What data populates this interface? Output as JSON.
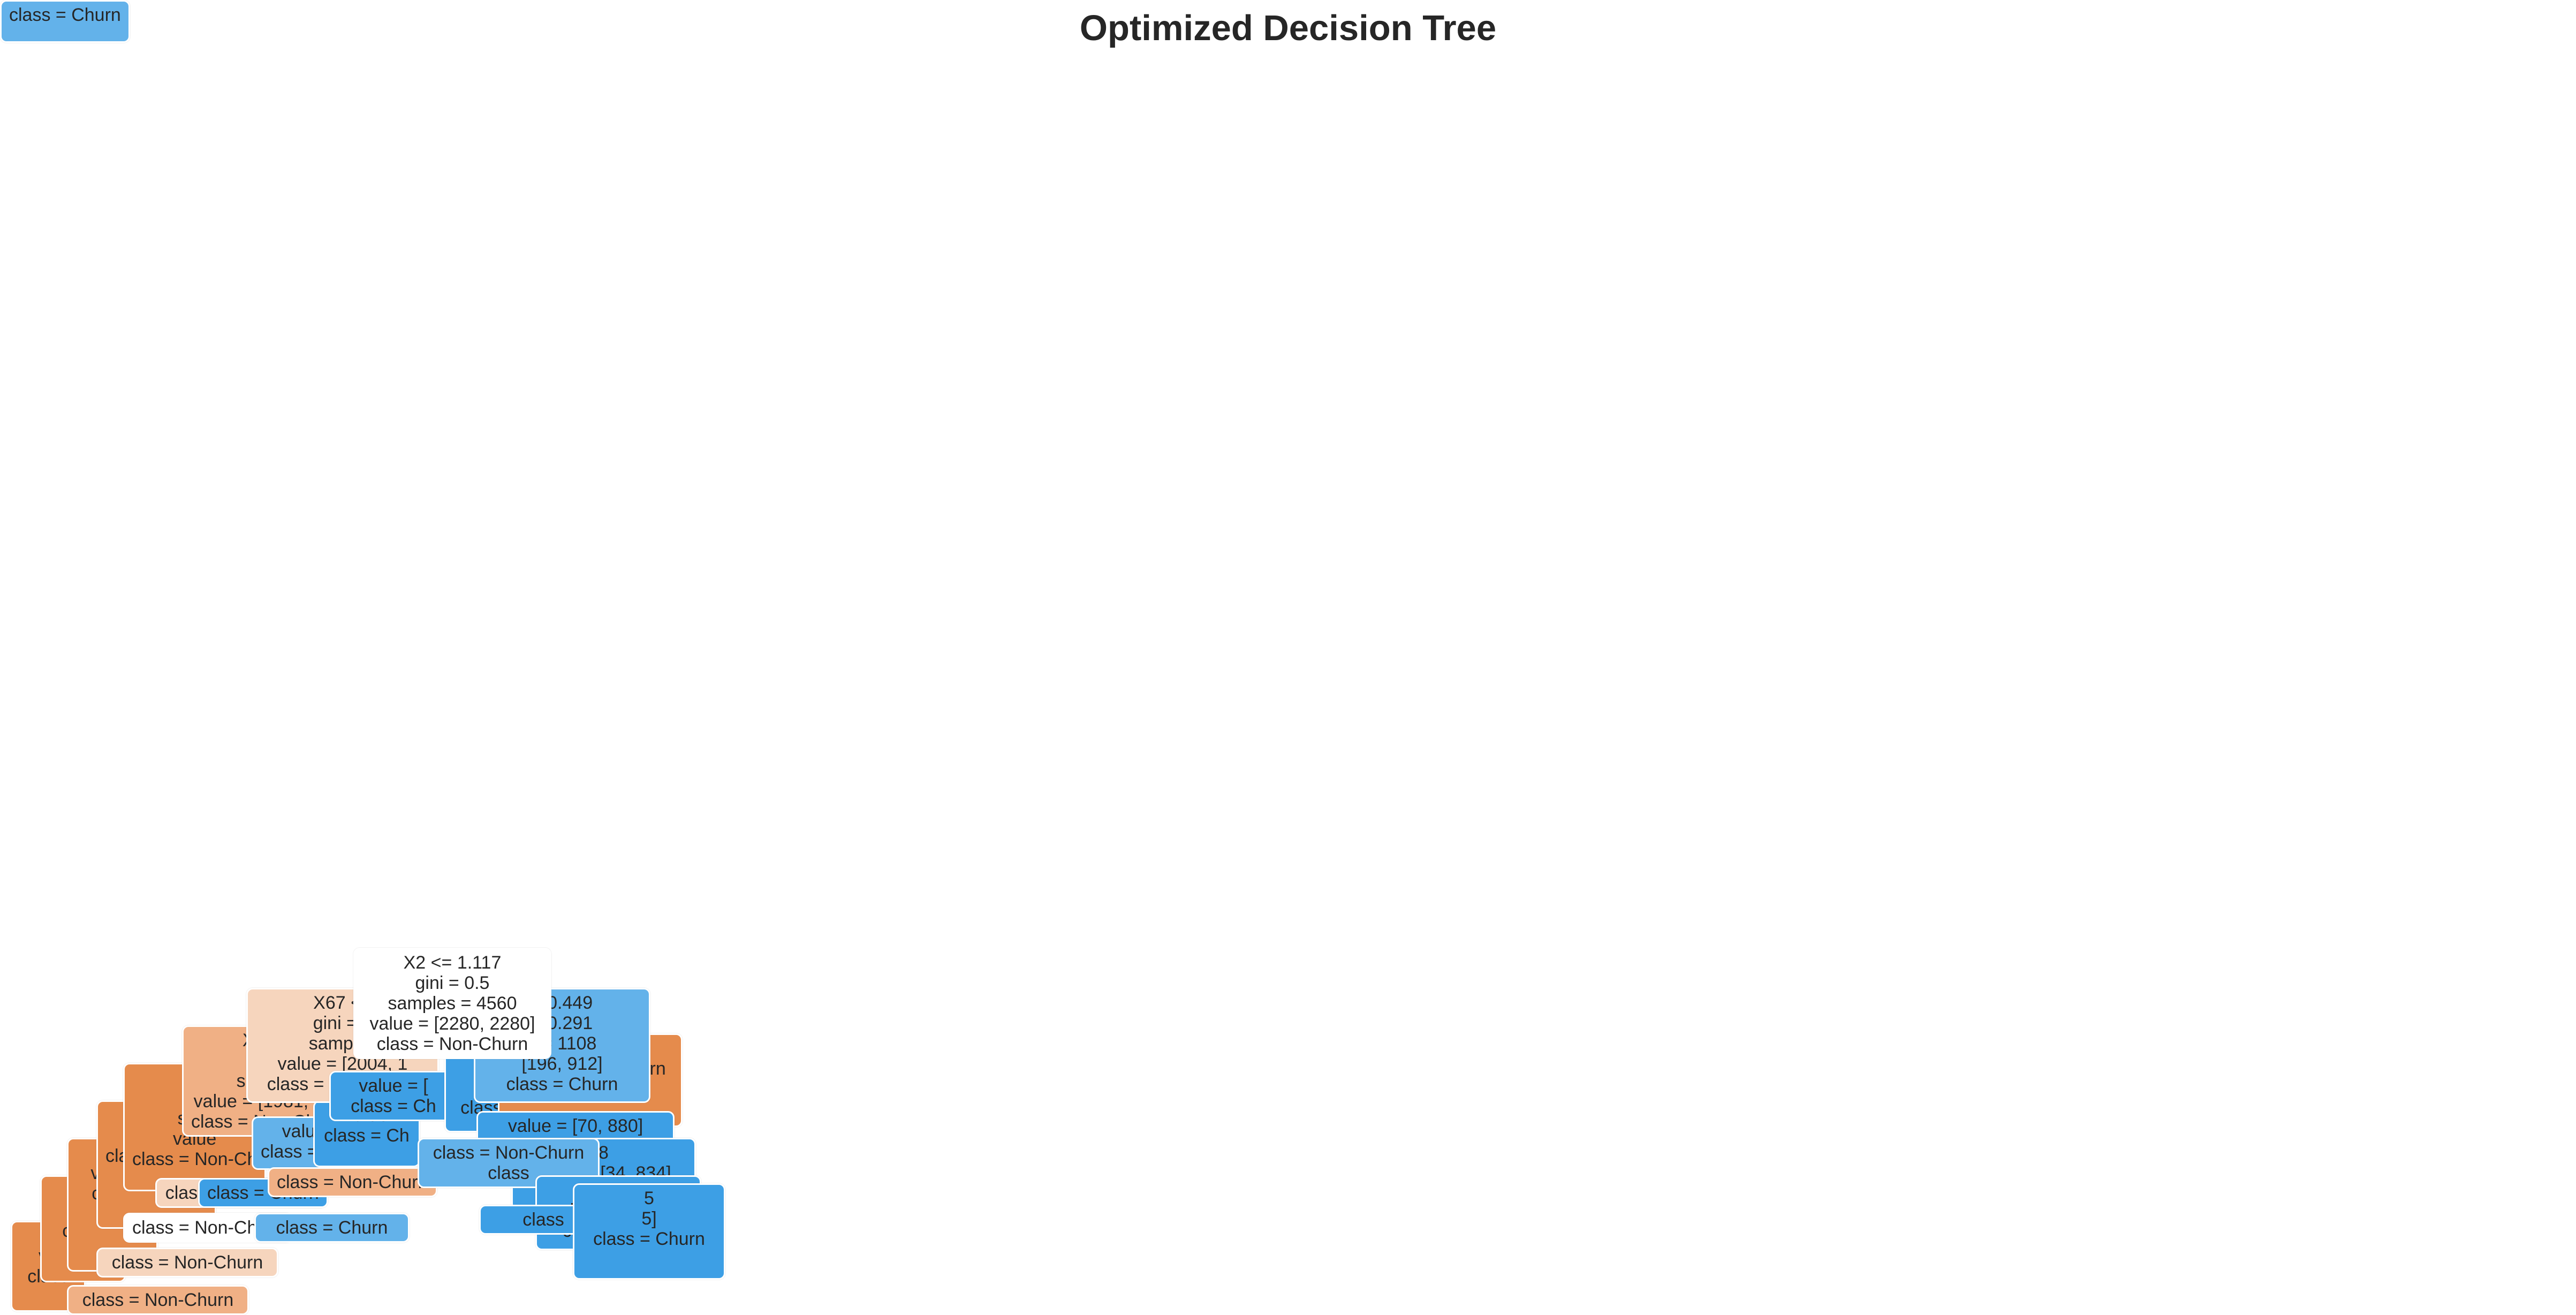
{
  "title": "Optimized Decision Tree",
  "colors": {
    "non_churn_strong": "#e58b4c",
    "non_churn_medium": "#f0b085",
    "non_churn_light": "#f6d5bd",
    "churn_strong": "#3d9fe5",
    "churn_medium": "#63b2ea",
    "churn_light": "#93c9f1",
    "neutral": "#ffffff",
    "text": "#262626"
  },
  "nodes": [
    {
      "id": "leaf-a1",
      "tone": "non_churn_strong",
      "lines": [
        "s",
        "va",
        "class"
      ]
    },
    {
      "id": "leaf-a2",
      "tone": "non_churn_strong",
      "lines": [
        "s",
        "val",
        "class"
      ]
    },
    {
      "id": "leaf-a3",
      "tone": "non_churn_strong",
      "lines": [
        "s",
        "value",
        "class"
      ]
    },
    {
      "id": "leaf-a4",
      "tone": "non_churn_strong",
      "lines": [
        "s",
        "value",
        "class = Non-"
      ]
    },
    {
      "id": "node-x5",
      "tone": "non_churn_strong",
      "lines": [
        "X5",
        "gi",
        "sam",
        "value",
        "class = Non-Ch"
      ]
    },
    {
      "id": "node-x14",
      "tone": "non_churn_medium",
      "lines": [
        "X14",
        "gin",
        "samp",
        "value = [1981, 1",
        "class = Non-Chu"
      ]
    },
    {
      "id": "leaf-b1",
      "tone": "non_churn_medium",
      "lines": [
        "class = Non-Churn"
      ]
    },
    {
      "id": "leaf-b2",
      "tone": "non_churn_light",
      "lines": [
        "class = Non-Churn"
      ]
    },
    {
      "id": "leaf-b3",
      "tone": "neutral",
      "lines": [
        "class = Non-Churn"
      ]
    },
    {
      "id": "leaf-b4",
      "tone": "non_churn_light",
      "lines": [
        "class = Non-Churn"
      ]
    },
    {
      "id": "leaf-c1",
      "tone": "churn_strong",
      "lines": [
        "class = Churn"
      ]
    },
    {
      "id": "leaf-c2",
      "tone": "churn_medium",
      "lines": [
        "class = Churn"
      ]
    },
    {
      "id": "leaf-c3",
      "tone": "churn_medium",
      "lines": [
        "value = [",
        "class = Churn"
      ]
    },
    {
      "id": "leaf-c4",
      "tone": "churn_strong",
      "lines": [
        "value",
        "class = Ch"
      ]
    },
    {
      "id": "leaf-c5",
      "tone": "churn_medium",
      "lines": [
        "class = Churn"
      ]
    },
    {
      "id": "node-x67",
      "tone": "non_churn_light",
      "lines": [
        "X67 <=",
        "gini = 0",
        "samples",
        "value = [2004, 1",
        "class = Non-Churn"
      ]
    },
    {
      "id": "node-mid-1",
      "tone": "churn_strong",
      "lines": [
        "value = [",
        "class = Ch"
      ]
    },
    {
      "id": "node-mid-2",
      "tone": "churn_strong",
      "lines": [
        "s",
        "value",
        "class = Ch"
      ]
    },
    {
      "id": "node-mid-3",
      "tone": "non_churn_medium",
      "lines": [
        "class = Non-Churn"
      ]
    },
    {
      "id": "node-right-orange",
      "tone": "non_churn_strong",
      "lines": [
        "]",
        "class = Non-Churn"
      ]
    },
    {
      "id": "node-right-top",
      "tone": "churn_medium",
      "lines": [
        "= 0.449",
        "= 0.291",
        "s = 1108",
        "[196, 912]",
        "class = Churn"
      ]
    },
    {
      "id": "node-right-1",
      "tone": "churn_strong",
      "lines": [
        "value = [70, 880]",
        "class = Churn"
      ]
    },
    {
      "id": "node-right-2",
      "tone": "churn_strong",
      "lines": [
        "8",
        "value = [34, 834]",
        "class = Churn"
      ]
    },
    {
      "id": "node-right-3",
      "tone": "churn_medium",
      "lines": [
        "class = Non-Churn",
        "class"
      ]
    },
    {
      "id": "node-right-4",
      "tone": "churn_strong",
      "lines": [
        "3",
        "value = [20, 738]",
        "class = Churn"
      ]
    },
    {
      "id": "node-right-5",
      "tone": "churn_strong",
      "lines": [
        "class"
      ]
    },
    {
      "id": "node-right-6",
      "tone": "churn_strong",
      "lines": [
        "5",
        "5]",
        "class = Churn"
      ]
    },
    {
      "id": "root",
      "tone": "neutral",
      "lines": [
        "X2 <= 1.117",
        "gini = 0.5",
        "samples = 4560",
        "value = [2280, 2280]",
        "class = Non-Churn"
      ]
    }
  ]
}
